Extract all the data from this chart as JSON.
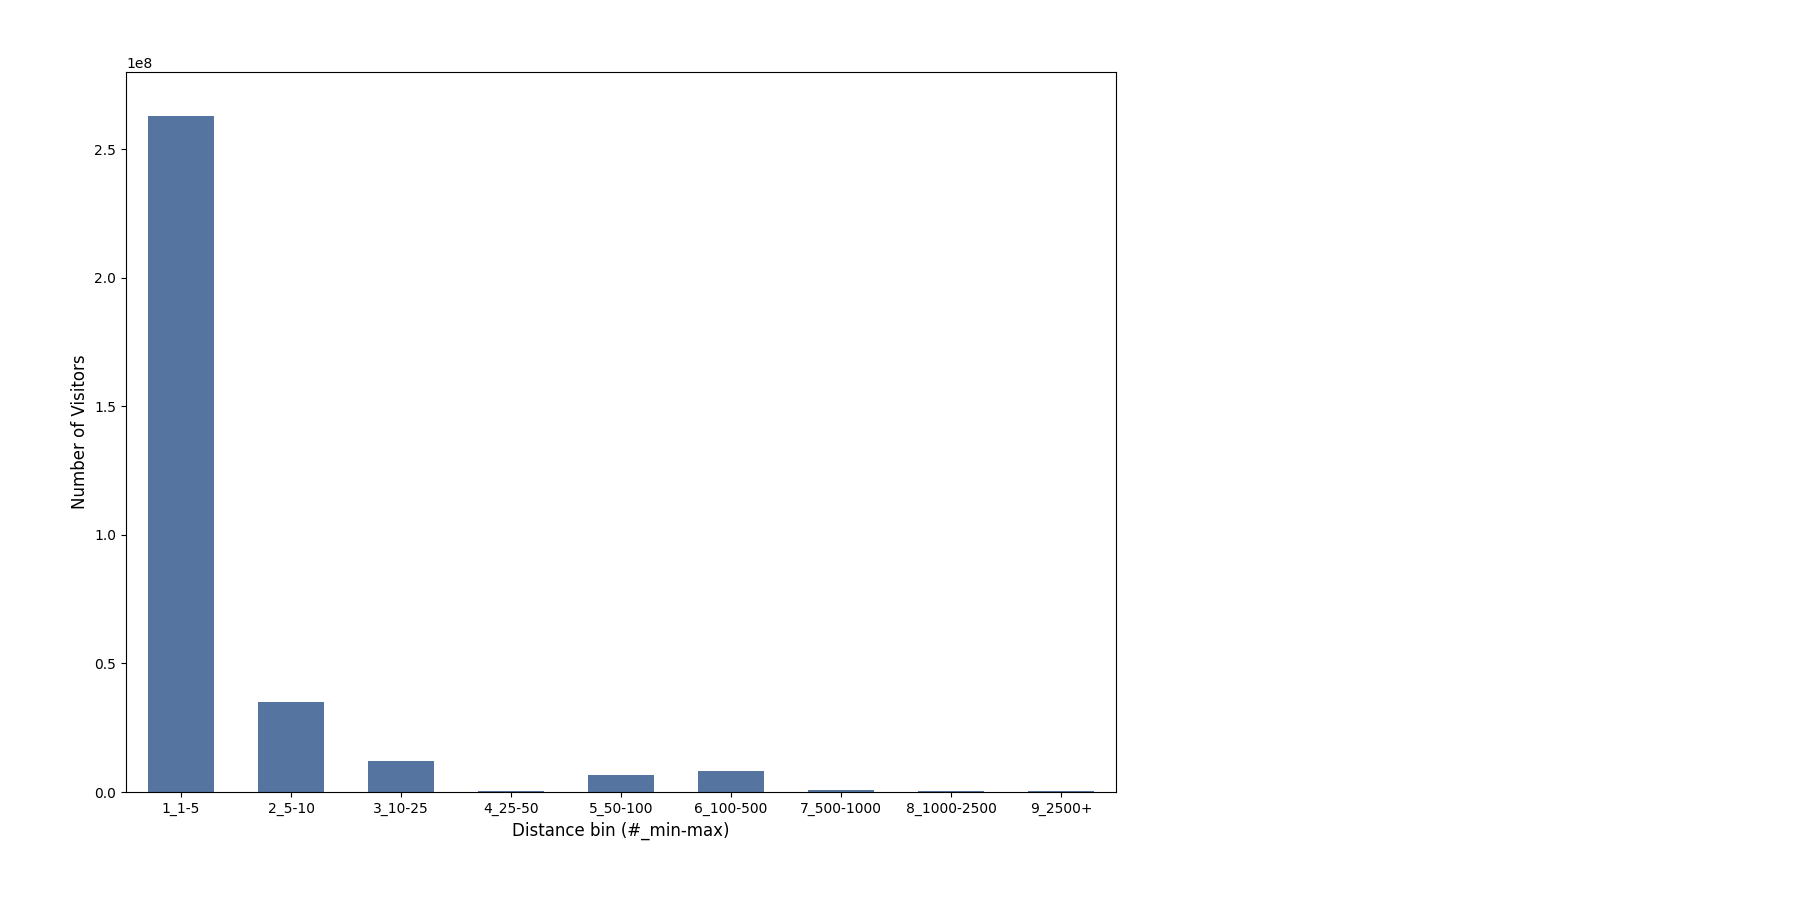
{
  "categories": [
    "1_1-5",
    "2_5-10",
    "3_10-25",
    "4_25-50",
    "5_50-100",
    "6_100-500",
    "7_500-1000",
    "8_1000-2500",
    "9_2500+"
  ],
  "values": [
    263000000,
    35000000,
    12000000,
    500000,
    6500000,
    8000000,
    800000,
    400000,
    200000
  ],
  "bar_color": "#5574a0",
  "xlabel": "Distance bin (#_min-max)",
  "ylabel": "Number of Visitors",
  "figsize": [
    18,
    9
  ],
  "dpi": 100,
  "ylim": [
    0,
    280000000.0
  ],
  "tick_fontsize": 10,
  "label_fontsize": 12
}
